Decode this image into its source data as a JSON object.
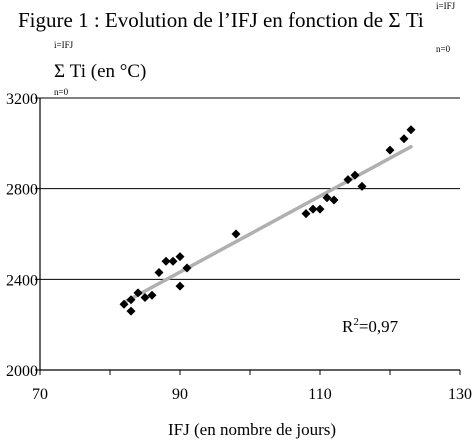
{
  "header": {
    "title": "Figure 1 : Evolution de l’IFJ en fonction de Σ  Ti",
    "sum_upper": "i=IFJ",
    "sum_lower": "n=0"
  },
  "yaxis_label": {
    "sum_upper": "i=IFJ",
    "text": "Σ Ti (en °C)",
    "sum_lower": "n=0"
  },
  "chart_data": {
    "type": "scatter",
    "title": "Figure 1 : Evolution de l’IFJ en fonction de Σ Ti",
    "xlabel": "IFJ (en nombre de jours)",
    "ylabel": "Σ Ti (en °C)",
    "xlim": [
      70,
      130
    ],
    "ylim": [
      2000,
      3200
    ],
    "xticks": [
      70,
      90,
      110,
      130
    ],
    "yticks": [
      2000,
      2400,
      2800,
      3200
    ],
    "xtick_labels": [
      "70",
      "90",
      "110",
      "130"
    ],
    "ytick_labels": [
      "2000",
      "2400",
      "2800",
      "3200"
    ],
    "grid": "horizontal",
    "points": [
      {
        "x": 82,
        "y": 2290
      },
      {
        "x": 83,
        "y": 2310
      },
      {
        "x": 83,
        "y": 2260
      },
      {
        "x": 84,
        "y": 2340
      },
      {
        "x": 85,
        "y": 2320
      },
      {
        "x": 86,
        "y": 2330
      },
      {
        "x": 87,
        "y": 2430
      },
      {
        "x": 88,
        "y": 2480
      },
      {
        "x": 89,
        "y": 2480
      },
      {
        "x": 90,
        "y": 2500
      },
      {
        "x": 90,
        "y": 2370
      },
      {
        "x": 91,
        "y": 2450
      },
      {
        "x": 98,
        "y": 2600
      },
      {
        "x": 108,
        "y": 2690
      },
      {
        "x": 109,
        "y": 2710
      },
      {
        "x": 110,
        "y": 2710
      },
      {
        "x": 111,
        "y": 2760
      },
      {
        "x": 112,
        "y": 2750
      },
      {
        "x": 114,
        "y": 2840
      },
      {
        "x": 115,
        "y": 2860
      },
      {
        "x": 116,
        "y": 2810
      },
      {
        "x": 120,
        "y": 2970
      },
      {
        "x": 122,
        "y": 3020
      },
      {
        "x": 123,
        "y": 3060
      }
    ],
    "trendline": {
      "x": [
        82,
        123
      ],
      "y": [
        2298,
        2985
      ]
    },
    "annotation": {
      "prefix": "R",
      "sup": "2",
      "value": "=0,97"
    },
    "colors": {
      "points": "#000000",
      "trendline": "#b0b0b0",
      "grid": "#000000"
    }
  }
}
